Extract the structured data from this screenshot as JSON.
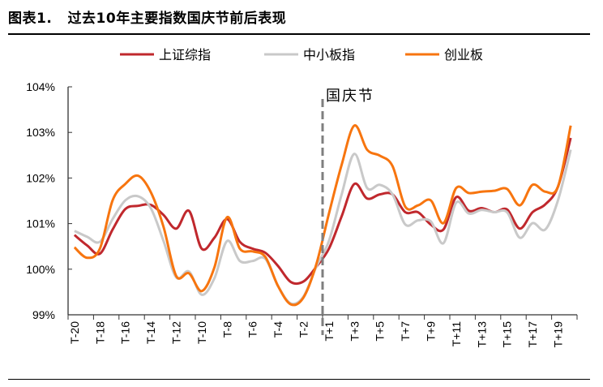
{
  "header": {
    "title": "图表1.   过去10年主要指数国庆节前后表现"
  },
  "chart_data": {
    "type": "line",
    "title": "",
    "xlabel": "",
    "ylabel": "",
    "ylim": [
      99,
      104
    ],
    "yticks": [
      "99%",
      "100%",
      "101%",
      "102%",
      "103%",
      "104%"
    ],
    "y_unit": "%",
    "grid": false,
    "legend_position": "top",
    "annotation": {
      "text": "国庆节",
      "between": [
        "T-1",
        "T+1"
      ],
      "style": "dashed vertical line"
    },
    "categories": [
      "T-20",
      "T-19",
      "T-18",
      "T-17",
      "T-16",
      "T-15",
      "T-14",
      "T-13",
      "T-12",
      "T-11",
      "T-10",
      "T-9",
      "T-8",
      "T-7",
      "T-6",
      "T-5",
      "T-4",
      "T-3",
      "T-2",
      "T-1",
      "T+1",
      "T+2",
      "T+3",
      "T+4",
      "T+5",
      "T+6",
      "T+7",
      "T+8",
      "T+9",
      "T+10",
      "T+11",
      "T+12",
      "T+13",
      "T+14",
      "T+15",
      "T+16",
      "T+17",
      "T+18",
      "T+19",
      "T+20"
    ],
    "visible_tick_labels": [
      "T-20",
      "T-18",
      "T-16",
      "T-14",
      "T-12",
      "T-10",
      "T-8",
      "T-6",
      "T-4",
      "T-2",
      "T+1",
      "T+3",
      "T+5",
      "T+7",
      "T+9",
      "T+11",
      "T+13",
      "T+15",
      "T+17",
      "T+19"
    ],
    "series": [
      {
        "name": "上证综指",
        "color": "#C0282D",
        "values": [
          100.75,
          100.52,
          100.34,
          100.87,
          101.32,
          101.39,
          101.41,
          101.19,
          100.89,
          101.28,
          100.45,
          100.69,
          101.1,
          100.6,
          100.45,
          100.36,
          100.07,
          99.72,
          99.73,
          100.05,
          100.45,
          101.16,
          101.87,
          101.55,
          101.64,
          101.64,
          101.25,
          101.25,
          100.98,
          100.87,
          101.58,
          101.28,
          101.34,
          101.25,
          101.31,
          100.89,
          101.25,
          101.42,
          101.81,
          102.88
        ]
      },
      {
        "name": "中小板指",
        "color": "#C9C9C9",
        "values": [
          100.84,
          100.71,
          100.6,
          101.1,
          101.51,
          101.6,
          101.34,
          100.62,
          99.82,
          99.95,
          99.44,
          99.8,
          100.62,
          100.18,
          100.18,
          100.23,
          99.63,
          99.25,
          99.4,
          100.05,
          100.62,
          101.64,
          102.53,
          101.78,
          101.85,
          101.64,
          100.98,
          101.07,
          101.05,
          100.57,
          101.46,
          101.22,
          101.3,
          101.25,
          101.25,
          100.69,
          101.01,
          100.87,
          101.51,
          102.62
        ]
      },
      {
        "name": "创业板",
        "color": "#F7750F",
        "values": [
          100.48,
          100.25,
          100.45,
          101.51,
          101.87,
          102.05,
          101.69,
          100.93,
          99.85,
          99.91,
          99.52,
          100.04,
          101.14,
          100.45,
          100.39,
          100.27,
          99.63,
          99.23,
          99.38,
          100.1,
          101.22,
          102.29,
          103.15,
          102.62,
          102.49,
          102.26,
          101.37,
          101.4,
          101.51,
          101.01,
          101.78,
          101.67,
          101.7,
          101.72,
          101.76,
          101.4,
          101.85,
          101.7,
          101.81,
          103.15
        ]
      }
    ]
  }
}
